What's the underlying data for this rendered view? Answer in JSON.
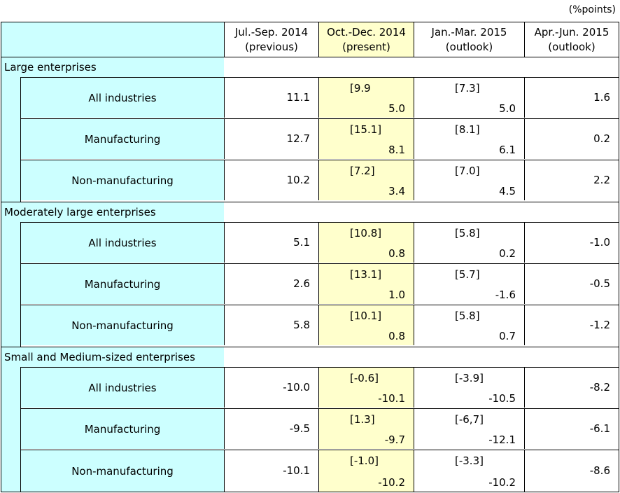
{
  "unit": "(%points)",
  "columns": [
    {
      "line1": "Jul.-Sep. 2014",
      "line2": "(previous)"
    },
    {
      "line1": "Oct.-Dec. 2014",
      "line2": "(present)"
    },
    {
      "line1": "Jan.-Mar. 2015",
      "line2": "(outlook)"
    },
    {
      "line1": "Apr.-Jun. 2015",
      "line2": "(outlook)"
    }
  ],
  "groups": [
    {
      "label": "Large enterprises",
      "rows": [
        {
          "label": "All industries",
          "jul_sep": "11.1",
          "oct_dec_bracket": "[9.9",
          "oct_dec": "5.0",
          "jan_mar_bracket": "[7.3]",
          "jan_mar": "5.0",
          "apr_jun": "1.6"
        },
        {
          "label": "Manufacturing",
          "jul_sep": "12.7",
          "oct_dec_bracket": "[15.1]",
          "oct_dec": "8.1",
          "jan_mar_bracket": "[8.1]",
          "jan_mar": "6.1",
          "apr_jun": "0.2"
        },
        {
          "label": "Non-manufacturing",
          "jul_sep": "10.2",
          "oct_dec_bracket": "[7.2]",
          "oct_dec": "3.4",
          "jan_mar_bracket": "[7.0]",
          "jan_mar": "4.5",
          "apr_jun": "2.2"
        }
      ]
    },
    {
      "label": "Moderately large enterprises",
      "rows": [
        {
          "label": "All industries",
          "jul_sep": "5.1",
          "oct_dec_bracket": "[10.8]",
          "oct_dec": "0.8",
          "jan_mar_bracket": "[5.8]",
          "jan_mar": "0.2",
          "apr_jun": "-1.0"
        },
        {
          "label": "Manufacturing",
          "jul_sep": "2.6",
          "oct_dec_bracket": "[13.1]",
          "oct_dec": "1.0",
          "jan_mar_bracket": "[5.7]",
          "jan_mar": "-1.6",
          "apr_jun": "-0.5"
        },
        {
          "label": "Non-manufacturing",
          "jul_sep": "5.8",
          "oct_dec_bracket": "[10.1]",
          "oct_dec": "0.8",
          "jan_mar_bracket": "[5.8]",
          "jan_mar": "0.7",
          "apr_jun": "-1.2"
        }
      ]
    },
    {
      "label": "Small and Medium-sized enterprises",
      "rows": [
        {
          "label": "All industries",
          "jul_sep": "-10.0",
          "oct_dec_bracket": "[-0.6]",
          "oct_dec": "-10.1",
          "jan_mar_bracket": "[-3.9]",
          "jan_mar": "-10.5",
          "apr_jun": "-8.2"
        },
        {
          "label": "Manufacturing",
          "jul_sep": "-9.5",
          "oct_dec_bracket": "[1.3]",
          "oct_dec": "-9.7",
          "jan_mar_bracket": "[-6,7]",
          "jan_mar": "-12.1",
          "apr_jun": "-6.1"
        },
        {
          "label": "Non-manufacturing",
          "jul_sep": "-10.1",
          "oct_dec_bracket": "[-1.0]",
          "oct_dec": "-10.2",
          "jan_mar_bracket": "[-3.3]",
          "jan_mar": "-10.2",
          "apr_jun": "-8.6"
        }
      ]
    }
  ]
}
